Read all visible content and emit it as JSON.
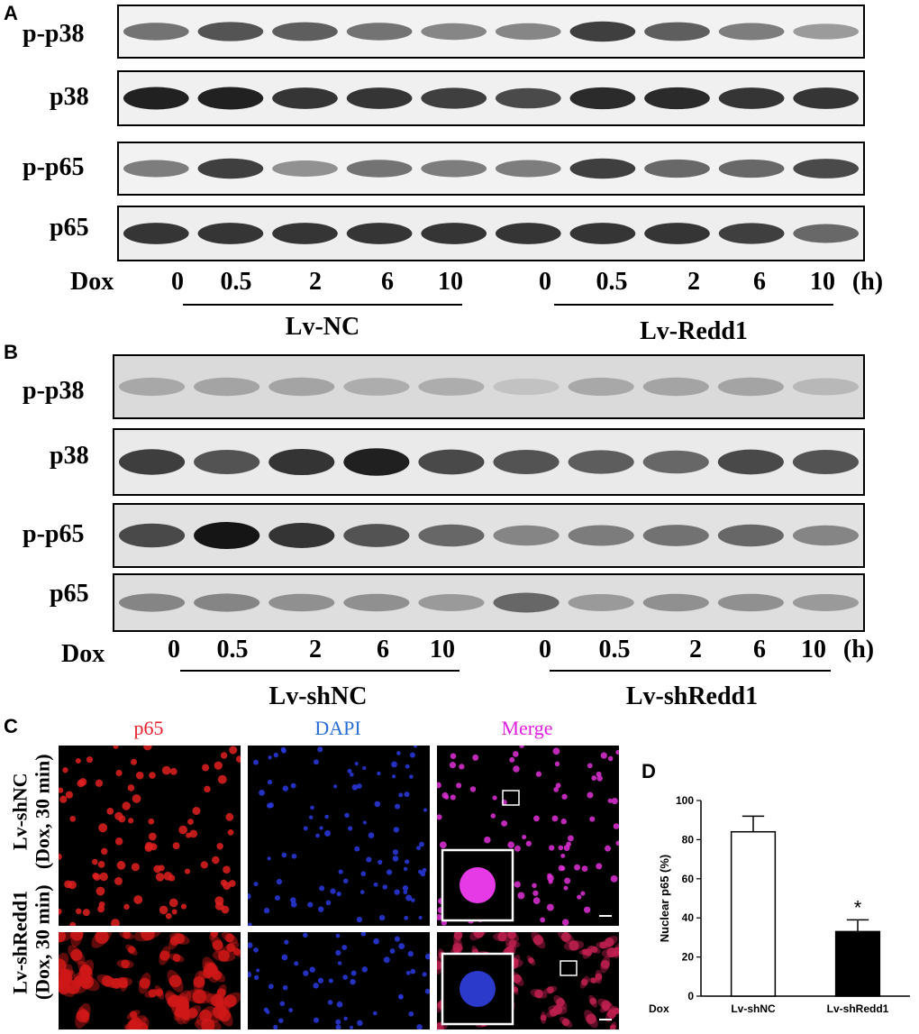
{
  "panels": {
    "A": {
      "letter": "A",
      "blots": [
        "p-p38",
        "p38",
        "p-p65",
        "p65"
      ],
      "dox_label": "Dox",
      "lanes": [
        "0",
        "0.5",
        "2",
        "6",
        "10",
        "0",
        "0.5",
        "2",
        "6",
        "10"
      ],
      "unit": "(h)",
      "groups": [
        "Lv-NC",
        "Lv-Redd1"
      ]
    },
    "B": {
      "letter": "B",
      "blots": [
        "p-p38",
        "p38",
        "p-p65",
        "p65"
      ],
      "dox_label": "Dox",
      "lanes": [
        "0",
        "0.5",
        "2",
        "6",
        "10",
        "0",
        "0.5",
        "2",
        "6",
        "10"
      ],
      "unit": "(h)",
      "groups": [
        "Lv-shNC",
        "Lv-shRedd1"
      ]
    },
    "C": {
      "letter": "C",
      "columns": [
        "p65",
        "DAPI",
        "Merge"
      ],
      "column_colors": [
        "#e8202a",
        "#2a6fd6",
        "#e020e0"
      ],
      "rows": [
        {
          "line1": "Lv-shNC",
          "line2": "(Dox, 30 min)"
        },
        {
          "line1": "Lv-shRedd1",
          "line2": "(Dox, 30 min)"
        }
      ]
    },
    "D": {
      "letter": "D",
      "x_prefix": "Dox",
      "significance": "*"
    }
  },
  "chart_data": {
    "type": "bar",
    "categories": [
      "Lv-shNC",
      "Lv-shRedd1"
    ],
    "values": [
      84,
      33
    ],
    "errors": [
      8,
      6
    ],
    "bar_fills": [
      "#ffffff",
      "#000000"
    ],
    "ylabel": "Nuclear p65 (%)",
    "ylim": [
      0,
      100
    ],
    "yticks": [
      0,
      20,
      40,
      60,
      80,
      100
    ],
    "annotations": [
      {
        "category": "Lv-shRedd1",
        "text": "*"
      }
    ]
  }
}
